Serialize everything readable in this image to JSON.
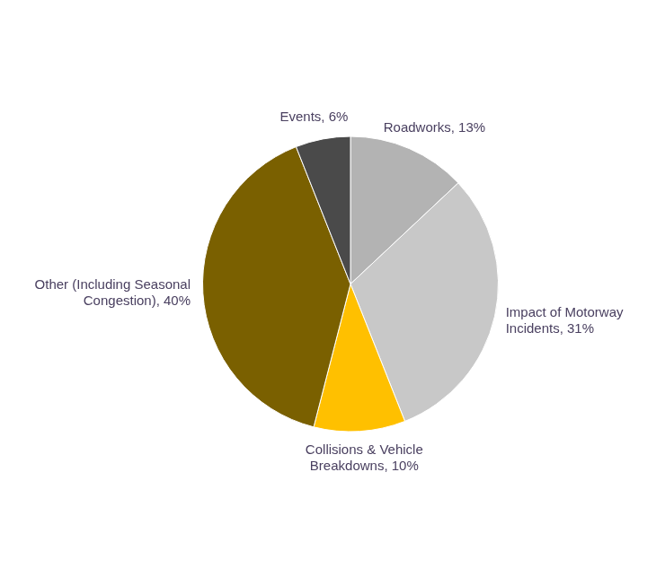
{
  "chart_data": {
    "type": "pie",
    "categories": [
      "Roadworks",
      "Impact of Motorway\nIncidents",
      "Collisions & Vehicle\nBreakdowns",
      "Other (Including Seasonal\nCongestion)",
      "Events"
    ],
    "values": [
      13,
      31,
      10,
      40,
      6
    ],
    "value_labels": [
      "Roadworks, 13%",
      "Impact of Motorway\nIncidents, 31%",
      "Collisions & Vehicle\nBreakdowns, 10%",
      "Other (Including Seasonal\nCongestion), 40%",
      "Events, 6%"
    ],
    "colors": [
      "#b3b3b3",
      "#c8c8c8",
      "#ffc000",
      "#7a6000",
      "#4a4a4a"
    ],
    "data_labels": true,
    "legend": false
  }
}
